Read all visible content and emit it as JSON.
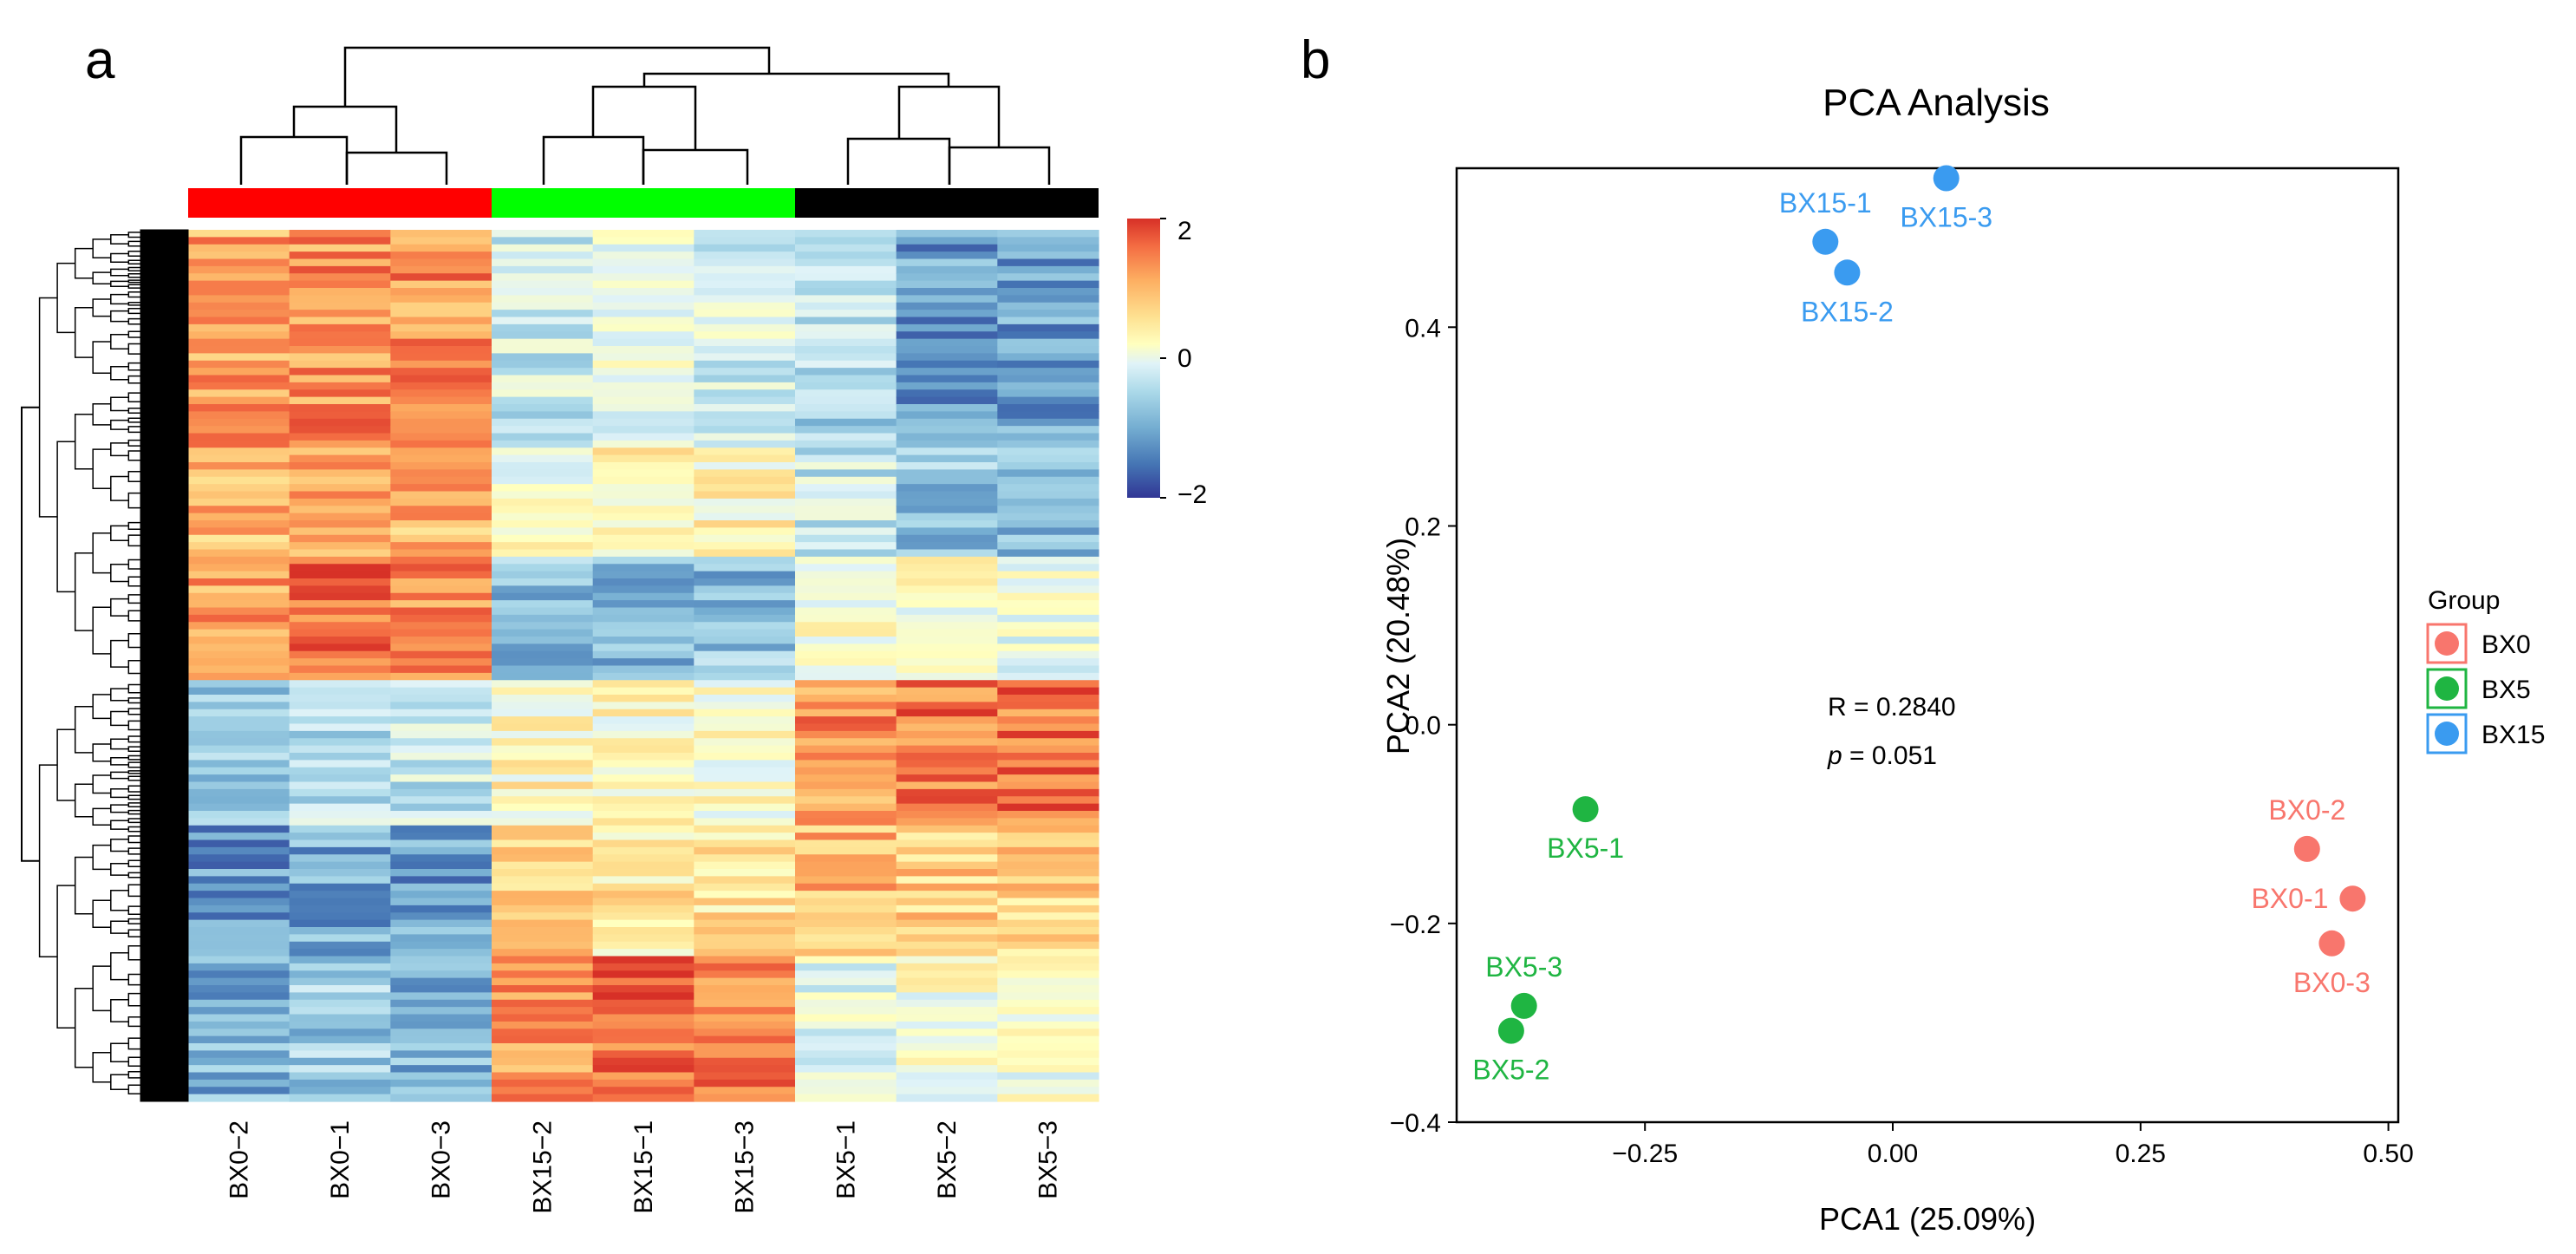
{
  "panels": {
    "a": "a",
    "b": "b"
  },
  "chart_data": [
    {
      "type": "heatmap",
      "columns": [
        "BX0−2",
        "BX0−1",
        "BX0−3",
        "BX15−2",
        "BX15−1",
        "BX15−3",
        "BX5−1",
        "BX5−2",
        "BX5−3"
      ],
      "column_groups": [
        {
          "name": "BX0",
          "color": "#ff0000",
          "columns": 3
        },
        {
          "name": "BX15",
          "color": "#00ff00",
          "columns": 3
        },
        {
          "name": "BX5",
          "color": "#000000",
          "columns": 3
        }
      ],
      "row_blocks": [
        {
          "rows": "1-30",
          "means": [
            1.2,
            1.3,
            1.3,
            -0.4,
            -0.1,
            -0.3,
            -0.6,
            -1.2,
            -1.2
          ]
        },
        {
          "rows": "31-45",
          "means": [
            1.0,
            1.1,
            1.0,
            0.1,
            0.4,
            0.3,
            -0.4,
            -0.8,
            -1.0
          ]
        },
        {
          "rows": "46-62",
          "means": [
            1.2,
            1.5,
            1.3,
            -0.9,
            -1.0,
            -0.9,
            0.2,
            0.1,
            0.0
          ]
        },
        {
          "rows": "63-82",
          "means": [
            -0.9,
            -0.5,
            -0.4,
            0.3,
            0.2,
            0.1,
            1.3,
            1.5,
            1.5
          ]
        },
        {
          "rows": "83-100",
          "means": [
            -1.3,
            -1.1,
            -1.2,
            0.7,
            0.5,
            0.6,
            1.0,
            0.8,
            0.8
          ]
        },
        {
          "rows": "101-120",
          "means": [
            -1.0,
            -0.8,
            -1.0,
            1.3,
            1.6,
            1.5,
            -0.2,
            0.1,
            0.0
          ]
        }
      ],
      "color_scale": {
        "min": -2,
        "max": 2,
        "ticks": [
          "2",
          "0",
          "−2"
        ],
        "colors": [
          "#313695",
          "#4575b4",
          "#74add1",
          "#abd9e9",
          "#e0f3f8",
          "#ffffbf",
          "#fee090",
          "#fdae61",
          "#f46d43",
          "#d73027"
        ]
      },
      "dendrogram": {
        "columns": "top",
        "rows": "left"
      }
    },
    {
      "type": "scatter",
      "title": "PCA Analysis",
      "xlabel": "PCA1 (25.09%)",
      "ylabel": "PCA2 (20.48%)",
      "xlim": [
        -0.44,
        0.51
      ],
      "ylim": [
        -0.4,
        0.56
      ],
      "xticks": [
        -0.25,
        0.0,
        0.25,
        0.5
      ],
      "xtick_labels": [
        "−0.25",
        "0.00",
        "0.25",
        "0.50"
      ],
      "yticks": [
        -0.4,
        -0.2,
        0.0,
        0.2,
        0.4
      ],
      "ytick_labels": [
        "−0.4",
        "−0.2",
        "0.0",
        "0.2",
        "0.4"
      ],
      "points": [
        {
          "label": "BX15-1",
          "group": "BX15",
          "x": -0.068,
          "y": 0.486,
          "label_pos": "above"
        },
        {
          "label": "BX15-3",
          "group": "BX15",
          "x": 0.054,
          "y": 0.55,
          "label_pos": "below"
        },
        {
          "label": "BX15-2",
          "group": "BX15",
          "x": -0.046,
          "y": 0.455,
          "label_pos": "below"
        },
        {
          "label": "BX5-1",
          "group": "BX5",
          "x": -0.31,
          "y": -0.085,
          "label_pos": "below"
        },
        {
          "label": "BX5-3",
          "group": "BX5",
          "x": -0.372,
          "y": -0.283,
          "label_pos": "above"
        },
        {
          "label": "BX5-2",
          "group": "BX5",
          "x": -0.385,
          "y": -0.308,
          "label_pos": "below"
        },
        {
          "label": "BX0-2",
          "group": "BX0",
          "x": 0.418,
          "y": -0.125,
          "label_pos": "above"
        },
        {
          "label": "BX0-1",
          "group": "BX0",
          "x": 0.464,
          "y": -0.175,
          "label_pos": "left"
        },
        {
          "label": "BX0-3",
          "group": "BX0",
          "x": 0.443,
          "y": -0.22,
          "label_pos": "below"
        }
      ],
      "group_colors": {
        "BX0": "#f8766d",
        "BX5": "#1fb542",
        "BX15": "#3a9bf0"
      },
      "annotation": {
        "r_text": "R = 0.2840",
        "p_symbol": "p",
        "p_value": " = 0.051"
      },
      "legend": {
        "title": "Group",
        "entries": [
          "BX0",
          "BX5",
          "BX15"
        ],
        "position": "right"
      }
    }
  ]
}
